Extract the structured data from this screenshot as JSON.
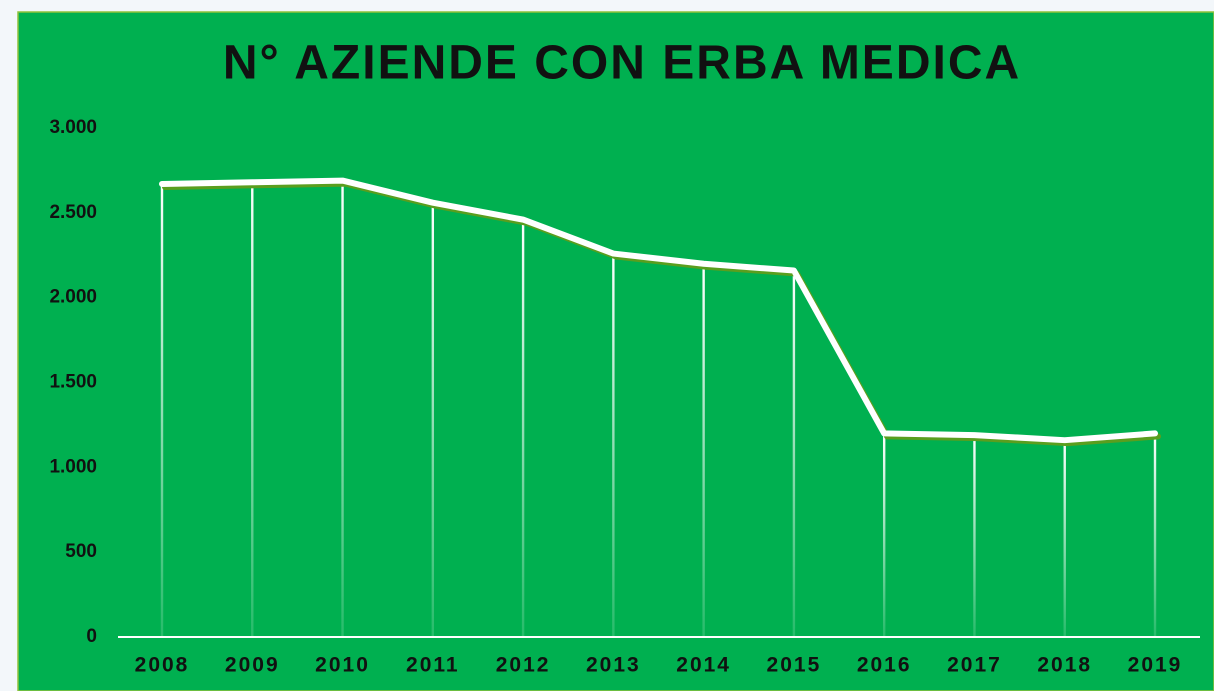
{
  "chart_data": {
    "type": "line",
    "title": "N° AZIENDE CON ERBA MEDICA",
    "categories": [
      "2008",
      "2009",
      "2010",
      "2011",
      "2012",
      "2013",
      "2014",
      "2015",
      "2016",
      "2017",
      "2018",
      "2019"
    ],
    "series": [
      {
        "name": "N° aziende",
        "color": "#ffffff",
        "values": [
          2670,
          2680,
          2690,
          2560,
          2460,
          2260,
          2200,
          2160,
          1200,
          1190,
          1160,
          1200
        ]
      }
    ],
    "ylim": [
      0,
      3000
    ],
    "yticks": [
      0,
      500,
      {
        "value": 1000,
        "label": "1.000"
      },
      {
        "value": 1500,
        "label": "1.500"
      },
      {
        "value": 2000,
        "label": "2.000"
      },
      {
        "value": 2500,
        "label": "2.500"
      },
      {
        "value": 3000,
        "label": "3.000"
      }
    ],
    "drop_lines": true,
    "background": "#00b050"
  }
}
